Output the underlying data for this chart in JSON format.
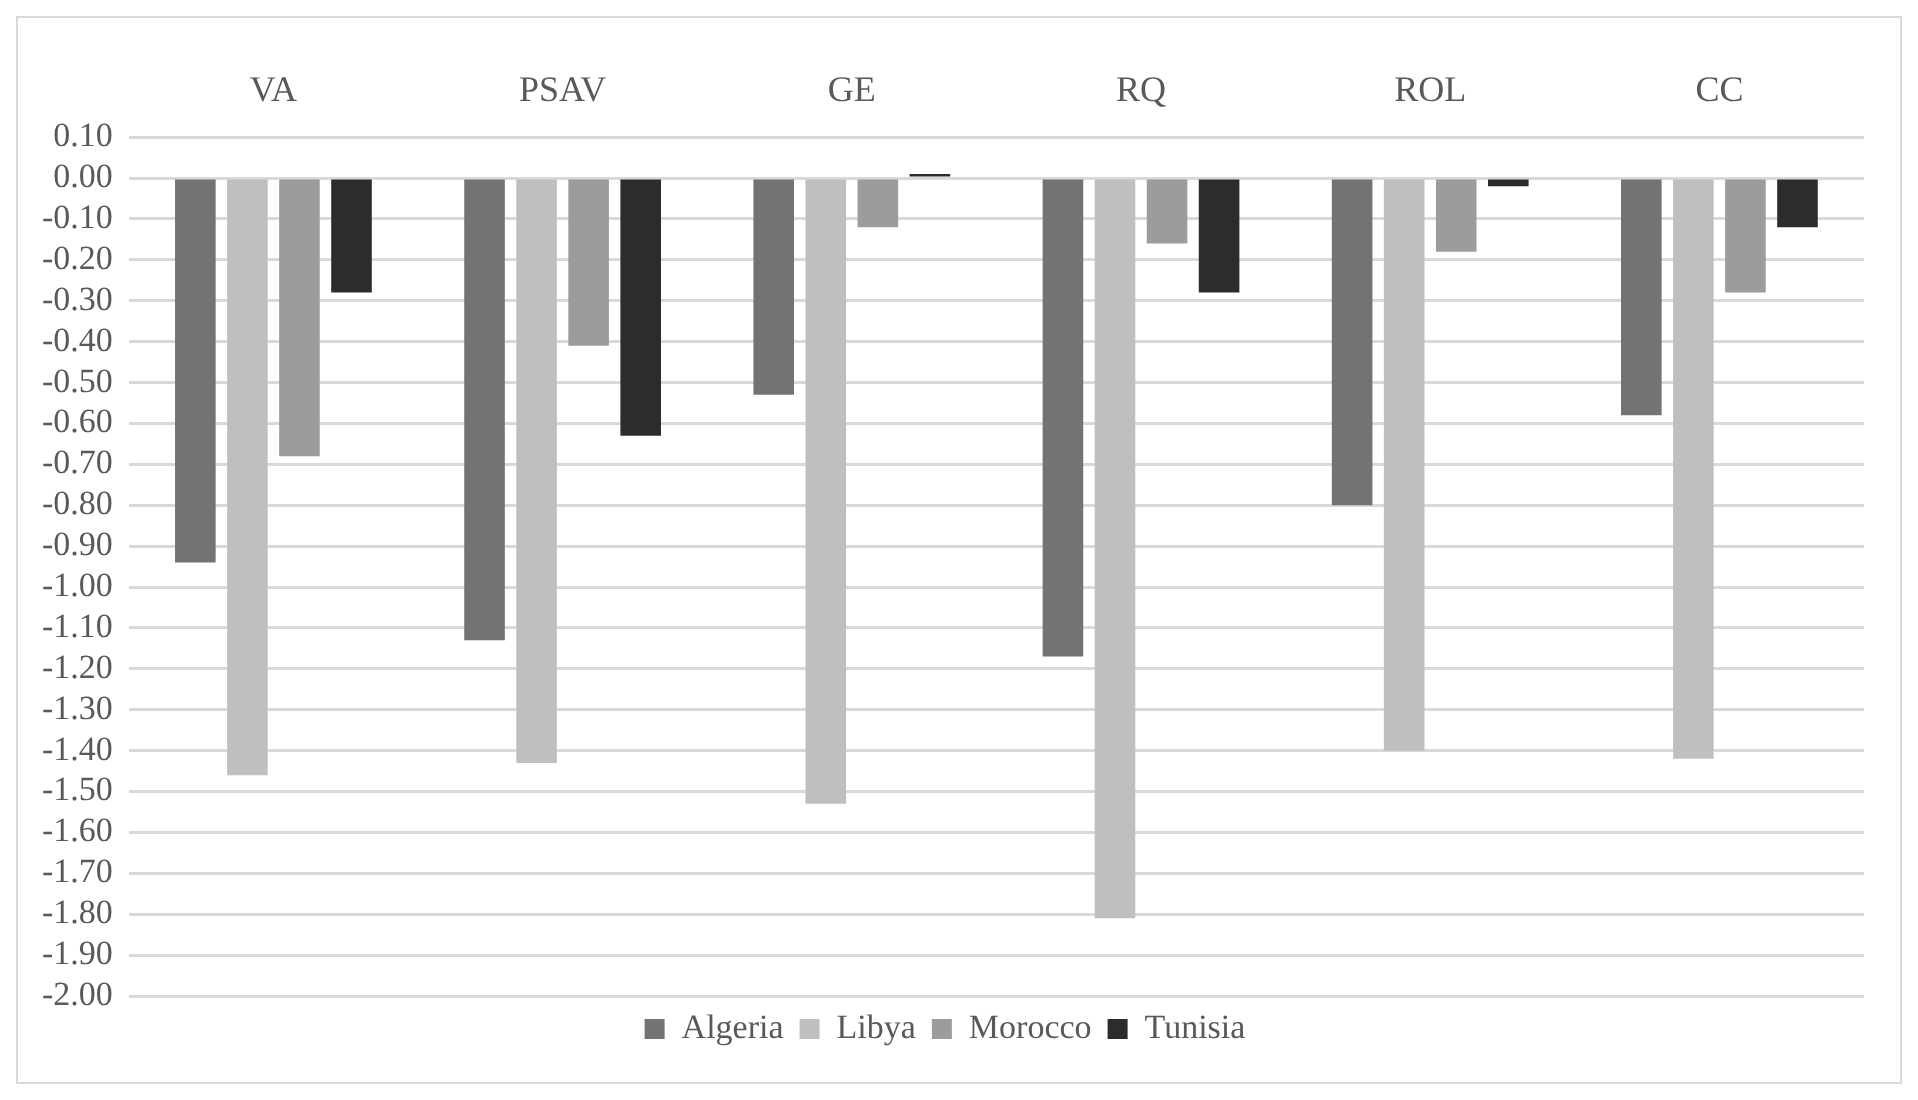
{
  "chart_data": {
    "type": "bar",
    "categories": [
      "VA",
      "PSAV",
      "GE",
      "RQ",
      "ROL",
      "CC"
    ],
    "series": [
      {
        "name": "Algeria",
        "color": "#737373",
        "values": [
          -0.94,
          -1.13,
          -0.53,
          -1.17,
          -0.8,
          -0.58
        ]
      },
      {
        "name": "Libya",
        "color": "#bfbfbf",
        "values": [
          -1.46,
          -1.43,
          -1.53,
          -1.81,
          -1.4,
          -1.42
        ]
      },
      {
        "name": "Morocco",
        "color": "#9c9c9c",
        "values": [
          -0.68,
          -0.41,
          -0.12,
          -0.16,
          -0.18,
          -0.28
        ]
      },
      {
        "name": "Tunisia",
        "color": "#2c2c2c",
        "values": [
          -0.28,
          -0.63,
          0.01,
          -0.28,
          -0.02,
          -0.12
        ]
      }
    ],
    "ylim": [
      -2.0,
      0.1
    ],
    "yticks": [
      {
        "value": 0.1,
        "label": "0.10"
      },
      {
        "value": 0,
        "label": "0.00"
      },
      {
        "value": -0.1,
        "label": "-0.10"
      },
      {
        "value": -0.2,
        "label": "-0.20"
      },
      {
        "value": -0.3,
        "label": "-0.30"
      },
      {
        "value": -0.4,
        "label": "-0.40"
      },
      {
        "value": -0.5,
        "label": "-0.50"
      },
      {
        "value": -0.6,
        "label": "-0.60"
      },
      {
        "value": -0.7,
        "label": "-0.70"
      },
      {
        "value": -0.8,
        "label": "-0.80"
      },
      {
        "value": -0.9,
        "label": "-0.90"
      },
      {
        "value": -1.0,
        "label": "-1.00"
      },
      {
        "value": -1.1,
        "label": "-1.10"
      },
      {
        "value": -1.2,
        "label": "-1.20"
      },
      {
        "value": -1.3,
        "label": "-1.30"
      },
      {
        "value": -1.4,
        "label": "-1.40"
      },
      {
        "value": -1.5,
        "label": "-1.50"
      },
      {
        "value": -1.6,
        "label": "-1.60"
      },
      {
        "value": -1.7,
        "label": "-1.70"
      },
      {
        "value": -1.8,
        "label": "-1.80"
      },
      {
        "value": -1.9,
        "label": "-1.90"
      },
      {
        "value": -2.0,
        "label": "-2.00"
      }
    ],
    "grid": "y",
    "legend": "bottom"
  }
}
